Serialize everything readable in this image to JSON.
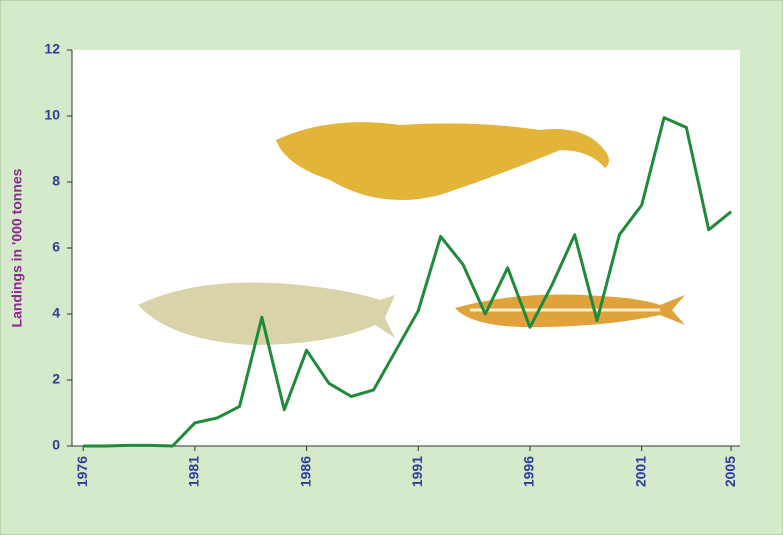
{
  "chart_data": {
    "type": "line",
    "y_label": "Landings in '000 tonnes",
    "x": [
      1976,
      1977,
      1978,
      1979,
      1980,
      1981,
      1982,
      1983,
      1984,
      1985,
      1986,
      1987,
      1988,
      1989,
      1990,
      1991,
      1992,
      1993,
      1994,
      1995,
      1996,
      1997,
      1998,
      1999,
      2000,
      2001,
      2002,
      2003,
      2004,
      2005
    ],
    "series": [
      {
        "color": "#1e8a3a",
        "values": [
          0,
          0,
          0.02,
          0.02,
          0,
          0.7,
          0.85,
          1.2,
          3.9,
          1.1,
          2.9,
          1.9,
          1.5,
          1.7,
          2.9,
          4.1,
          6.35,
          5.5,
          4.0,
          5.4,
          3.6,
          4.9,
          6.4,
          3.8,
          6.4,
          7.3,
          9.95,
          9.65,
          6.55,
          7.1
        ]
      }
    ],
    "xlim": [
      1975.5,
      2005.4
    ],
    "xticks": [
      1976,
      1981,
      1986,
      1991,
      1996,
      2001,
      2005
    ],
    "ylim": [
      0,
      12
    ],
    "yticks": [
      0,
      2,
      4,
      6,
      8,
      10,
      12
    ]
  }
}
